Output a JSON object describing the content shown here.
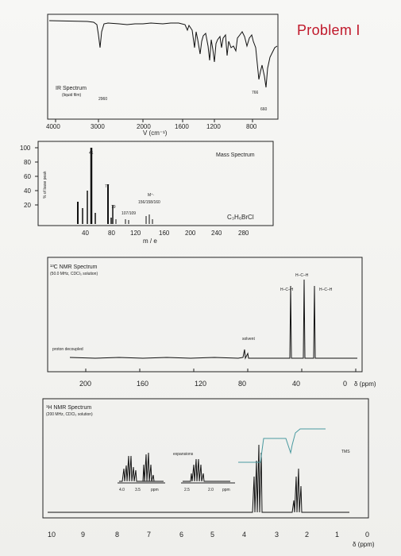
{
  "problem_title": "Problem I",
  "ir": {
    "title": "IR Spectrum",
    "subtitle": "(liquid film)",
    "peak_labels": [
      "2960",
      "766",
      "660"
    ],
    "x_ticks": [
      "4000",
      "3000",
      "2000",
      "1600",
      "1200",
      "800"
    ],
    "xlabel": "V (cm⁻¹)"
  },
  "mass": {
    "title": "Mass Spectrum",
    "ylabel": "% of base peak",
    "y_ticks": [
      "100",
      "80",
      "60",
      "40",
      "20"
    ],
    "x_ticks": [
      "40",
      "80",
      "120",
      "160",
      "200",
      "240",
      "280"
    ],
    "xlabel": "m / e",
    "peak_labels": [
      "41",
      "77",
      "79",
      "107/109"
    ],
    "molecular_ion": "M⁺·",
    "molecular_ion_values": "156/158/160",
    "formula": "C₃H₆BrCl"
  },
  "c13": {
    "title": "¹³C NMR Spectrum",
    "subtitle": "(50.0 MHz, CDCl₃ solution)",
    "decoupled_label": "proton decoupled",
    "solvent_label": "solvent",
    "fragment_1": "H–C–H",
    "fragment_2": "H–C–H",
    "fragment_3": "H–C–H",
    "x_ticks": [
      "200",
      "160",
      "120",
      "80",
      "40",
      "0"
    ],
    "unit": "δ (ppm)"
  },
  "h1": {
    "title": "¹H NMR Spectrum",
    "subtitle": "(200 MHz, CDCl₃ solution)",
    "expansions_label": "expansions",
    "tms_label": "TMS",
    "exp1_ticks": [
      "4.0",
      "3.5",
      "ppm"
    ],
    "exp2_ticks": [
      "2.5",
      "2.0",
      "ppm"
    ],
    "x_ticks": [
      "10",
      "9",
      "8",
      "7",
      "6",
      "5",
      "4",
      "3",
      "2",
      "1",
      "0"
    ],
    "unit": "δ (ppm)"
  },
  "colors": {
    "title_red": "#c0182a",
    "integral_teal": "#4a9aa0",
    "ink": "#111111"
  }
}
